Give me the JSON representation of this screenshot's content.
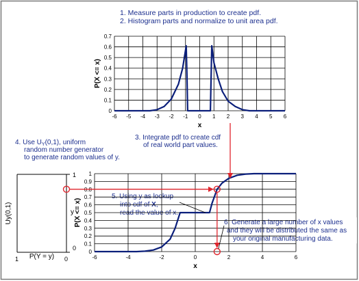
{
  "colors": {
    "curve": "#0a1e7a",
    "annotation_text": "#1c2f8e",
    "arrow": "#e0242c",
    "frame": "#7a7a7a"
  },
  "steps": {
    "s1": "1.  Measure parts in production to create pdf.",
    "s2": "2.  Histogram parts and normalize to unit area pdf.",
    "s3_line1": "3.  Integrate pdf to create cdf",
    "s3_line2": "of real world part values.",
    "s4_line1_pre": "4.  Use U",
    "s4_line1_sub": "Y",
    "s4_line1_post": "(0,1), uniform",
    "s4_line2": "random number generator",
    "s4_line3": "to generate random values of y.",
    "s5_line1": "5.  Using y as lookup",
    "s5_line2_pre": "into cdf of ",
    "s5_line2_bold": "X",
    "s5_line2_post": ",",
    "s5_line3": "read the value of x.",
    "s6_line1": "6.  Generate a large number of x values",
    "s6_line2": "and they will be distributed the same as",
    "s6_line3": "your original manufacturing data."
  },
  "uniform_box": {
    "ylabel": "Uy(0,1)",
    "xlabel": "P(Y = y)",
    "y_mark": "y",
    "top_tick": "1",
    "bottom_tick": "0",
    "left_tick": "1",
    "right_tick": "0"
  },
  "chart_data": [
    {
      "type": "line",
      "name_hint": "pdf",
      "xlabel": "x",
      "ylabel": "P(X <= x)",
      "xlim": [
        -6,
        6
      ],
      "ylim": [
        0,
        0.7
      ],
      "x_ticks": [
        "-6",
        "-5",
        "-4",
        "-3",
        "-2",
        "-1",
        "0",
        "1",
        "2",
        "3",
        "4",
        "5",
        "6"
      ],
      "y_ticks": [
        "0",
        "0.1",
        "0.2",
        "0.3",
        "0.4",
        "0.5",
        "0.6",
        "0.7"
      ],
      "grid": true,
      "series": [
        {
          "x": [
            -6,
            -3.5,
            -3,
            -2.5,
            -2,
            -1.5,
            -1.2,
            -0.95,
            -0.9,
            -0.85,
            -0.6,
            0.6,
            0.75,
            0.85,
            1.0,
            1.3,
            1.6,
            2.0,
            2.5,
            3.0,
            3.5,
            6
          ],
          "y": [
            0,
            0,
            0.01,
            0.04,
            0.11,
            0.25,
            0.4,
            0.61,
            0.35,
            0.0,
            0.0,
            0.0,
            0.0,
            0.61,
            0.45,
            0.3,
            0.18,
            0.09,
            0.04,
            0.01,
            0,
            0
          ]
        }
      ]
    },
    {
      "type": "line",
      "name_hint": "cdf",
      "xlabel": "x",
      "ylabel": "P(X <= x)",
      "xlim": [
        -6,
        6
      ],
      "ylim": [
        0,
        1
      ],
      "x_ticks": [
        "-6",
        "-4",
        "-2",
        "0",
        "2",
        "4",
        "6"
      ],
      "y_ticks": [
        "0",
        "0.1",
        "0.2",
        "0.3",
        "0.4",
        "0.5",
        "0.6",
        "0.7",
        "0.8",
        "0.9",
        "1"
      ],
      "grid": true,
      "lookup": {
        "y": 0.8,
        "x": 1.3
      },
      "series": [
        {
          "x": [
            -6,
            -3.5,
            -3,
            -2.5,
            -2,
            -1.5,
            -1.2,
            -0.9,
            0.85,
            1.0,
            1.3,
            1.6,
            2.0,
            2.5,
            3.0,
            3.5,
            6
          ],
          "y": [
            0,
            0,
            0.005,
            0.02,
            0.06,
            0.16,
            0.3,
            0.5,
            0.5,
            0.62,
            0.8,
            0.88,
            0.94,
            0.98,
            0.995,
            1.0,
            1.0
          ]
        }
      ]
    }
  ]
}
